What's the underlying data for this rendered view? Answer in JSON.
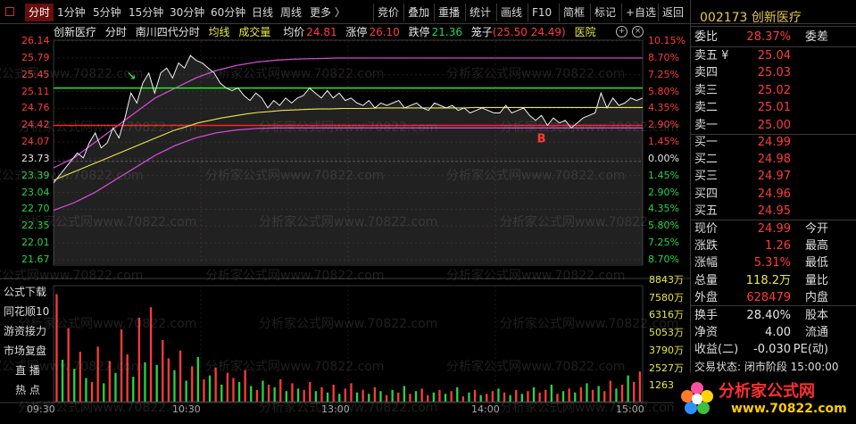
{
  "tabs": [
    "分时",
    "1分钟",
    "5分钟",
    "15分钟",
    "30分钟",
    "60分钟",
    "日线",
    "周线",
    "更多 〉"
  ],
  "tools": [
    "竞价",
    "叠加",
    "重播",
    "统计",
    "画线",
    "F10",
    "简框",
    "标记",
    "+自选",
    "返回"
  ],
  "chart_head": {
    "stock": "创新医疗",
    "mode": "分时",
    "indicator": "南川四代分时",
    "avg_line": "均线",
    "volume": "成交量",
    "avg_label": "均价",
    "avg_value": "24.81",
    "up_label": "涨停",
    "up_value": "26.10",
    "down_label": "跌停",
    "down_value": "21.36",
    "cage_label": "笼子",
    "cage_value": "(25.50 24.49)",
    "sector": "医院"
  },
  "side_buttons": [
    "公式下载",
    "同花顺10",
    "游资接力",
    "市场复盘",
    "直  播",
    "热  点"
  ],
  "volume_ticks": [
    "8843万",
    "7580万",
    "6316万",
    "5053万",
    "3790万",
    "2527万",
    "1263万"
  ],
  "time_ticks": [
    "09:30",
    "10:30",
    "13:00",
    "14:00",
    "15:00"
  ],
  "watermark": "分析家公式网www.70822.com",
  "colors": {
    "up": "#ff3b3b",
    "down": "#27d44a",
    "avg": "#e8e84a",
    "band": "#d04ad0"
  },
  "chart_data": {
    "type": "line",
    "price_ticks": [
      "26.14",
      "25.79",
      "25.45",
      "25.11",
      "24.76",
      "24.42",
      "24.07",
      "23.73",
      "23.39",
      "23.04",
      "22.70",
      "22.35",
      "22.01",
      "21.67"
    ],
    "pct_ticks": [
      "10.15%",
      "8.70%",
      "7.25%",
      "5.80%",
      "4.35%",
      "2.90%",
      "1.45%",
      "0.00%",
      "1.45%",
      "2.90%",
      "4.35%",
      "5.80%",
      "7.25%",
      "8.70%"
    ],
    "ylim": [
      21.67,
      26.14
    ],
    "prev_close": 23.73,
    "price_series": [
      23.3,
      23.45,
      23.6,
      23.75,
      23.9,
      23.8,
      24.1,
      24.3,
      24.0,
      24.1,
      24.4,
      24.2,
      24.6,
      25.1,
      24.9,
      25.3,
      25.5,
      25.1,
      25.5,
      25.6,
      25.4,
      25.7,
      25.6,
      25.85,
      25.75,
      25.7,
      25.6,
      25.5,
      25.3,
      25.2,
      25.15,
      25.2,
      25.05,
      24.95,
      25.1,
      25.0,
      24.8,
      24.95,
      24.85,
      25.0,
      24.9,
      25.0,
      25.05,
      25.2,
      25.1,
      25.0,
      25.15,
      25.0,
      25.1,
      24.95,
      25.0,
      24.9,
      24.85,
      24.95,
      24.8,
      24.9,
      24.85,
      24.9,
      24.95,
      24.8,
      24.85,
      24.9,
      24.8,
      24.75,
      24.9,
      24.85,
      24.8,
      24.85,
      24.75,
      24.8,
      24.7,
      24.75,
      24.8,
      24.75,
      24.7,
      24.7,
      24.85,
      24.7,
      24.75,
      24.8,
      24.65,
      24.55,
      24.65,
      24.45,
      24.6,
      24.5,
      24.55,
      24.4,
      24.5,
      24.6,
      24.65,
      24.7,
      25.1,
      24.8,
      25.0,
      24.85,
      24.9,
      25.0,
      24.95,
      25.0
    ],
    "avg_series": [
      23.35,
      23.45,
      23.55,
      23.65,
      23.75,
      23.85,
      23.95,
      24.05,
      24.15,
      24.25,
      24.35,
      24.42,
      24.5,
      24.55,
      24.6,
      24.64,
      24.68,
      24.71,
      24.73,
      24.75,
      24.76,
      24.77,
      24.78,
      24.78,
      24.79,
      24.79,
      24.79,
      24.8,
      24.8,
      24.8,
      24.8,
      24.8,
      24.8,
      24.8,
      24.8,
      24.81,
      24.81,
      24.81,
      24.81,
      24.81,
      24.81,
      24.81,
      24.81,
      24.81,
      24.81,
      24.81,
      24.81,
      24.81,
      24.81,
      24.81
    ],
    "upper_band": [
      23.6,
      23.8,
      24.1,
      24.4,
      24.7,
      25.0,
      25.2,
      25.4,
      25.55,
      25.65,
      25.72,
      25.76,
      25.78,
      25.79,
      25.8,
      25.8,
      25.8,
      25.8,
      25.8,
      25.8,
      25.8,
      25.8,
      25.8,
      25.8,
      25.8,
      25.8,
      25.8,
      25.8,
      25.8,
      25.8
    ],
    "lower_band": [
      22.75,
      22.9,
      23.1,
      23.35,
      23.6,
      23.85,
      24.05,
      24.2,
      24.3,
      24.36,
      24.39,
      24.4,
      24.4,
      24.4,
      24.4,
      24.4,
      24.4,
      24.4,
      24.4,
      24.4,
      24.4,
      24.4,
      24.4,
      24.4,
      24.4,
      24.4,
      24.4,
      24.4,
      24.4,
      24.4
    ],
    "green_level": 25.2,
    "red_level": 24.45,
    "markers": [
      {
        "symbol": "↘",
        "x_index": 13,
        "price": 25.45,
        "color": "#27d44a"
      },
      {
        "symbol": "B",
        "x_index": 82,
        "price": 24.2,
        "color": "#ff3b3b"
      }
    ],
    "volume_max": 8843,
    "volumes": [
      8200,
      3200,
      5600,
      2500,
      3800,
      1800,
      1500,
      4200,
      1400,
      3100,
      2200,
      5500,
      3600,
      1900,
      6400,
      3000,
      7200,
      2800,
      4700,
      3300,
      2400,
      3900,
      1600,
      2700,
      3400,
      1700,
      2000,
      2600,
      1300,
      2200,
      1800,
      1500,
      2400,
      1200,
      900,
      1600,
      1300,
      1100,
      1700,
      800,
      1400,
      1000,
      900,
      1500,
      800,
      1100,
      700,
      1300,
      600,
      1000,
      1400,
      700,
      900,
      600,
      1100,
      800,
      500,
      900,
      700,
      1200,
      600,
      800,
      1000,
      500,
      700,
      900,
      600,
      800,
      1100,
      400,
      700,
      900,
      500,
      600,
      800,
      1000,
      700,
      500,
      900,
      600,
      800,
      1100,
      700,
      900,
      1300,
      600,
      800,
      1000,
      700,
      1100,
      1400,
      900,
      1200,
      800,
      1600,
      1000,
      1300,
      2000,
      1500,
      2300
    ],
    "volume_colors": [
      "r",
      "g",
      "r",
      "g",
      "r",
      "g",
      "r",
      "r",
      "g",
      "r",
      "g",
      "r",
      "r",
      "g",
      "r",
      "g",
      "r",
      "g",
      "r",
      "r",
      "g",
      "r",
      "g",
      "r",
      "g",
      "r",
      "g",
      "r",
      "g",
      "r",
      "r",
      "g",
      "r",
      "g",
      "r",
      "g",
      "r",
      "g",
      "r",
      "g",
      "r",
      "g",
      "r",
      "r",
      "g",
      "r",
      "g",
      "r",
      "g",
      "r",
      "r",
      "g",
      "r",
      "g",
      "r",
      "g",
      "r",
      "g",
      "r",
      "g",
      "r",
      "g",
      "r",
      "r",
      "g",
      "r",
      "g",
      "r",
      "g",
      "r",
      "g",
      "r",
      "g",
      "r",
      "r",
      "g",
      "r",
      "g",
      "r",
      "g",
      "r",
      "g",
      "r",
      "r",
      "g",
      "r",
      "g",
      "r",
      "g",
      "r",
      "g",
      "r",
      "g",
      "r",
      "r",
      "g",
      "r",
      "g",
      "r",
      "r"
    ]
  },
  "quote": {
    "code_name": "002173 创新医疗",
    "webi_label": "委比",
    "webi_value": "28.37%",
    "weicha_label": "委差",
    "sells": [
      {
        "label": "卖五 ¥",
        "price": "25.04"
      },
      {
        "label": "卖四",
        "price": "25.03"
      },
      {
        "label": "卖三",
        "price": "25.02"
      },
      {
        "label": "卖二",
        "price": "25.01"
      },
      {
        "label": "卖一",
        "price": "25.00"
      }
    ],
    "buys": [
      {
        "label": "买一",
        "price": "24.99"
      },
      {
        "label": "买二",
        "price": "24.98"
      },
      {
        "label": "买三",
        "price": "24.97"
      },
      {
        "label": "买四",
        "price": "24.96"
      },
      {
        "label": "买五",
        "price": "24.95"
      }
    ],
    "stats1": [
      {
        "label": "现价",
        "value": "24.99",
        "cls": "red",
        "label2": "今开"
      },
      {
        "label": "涨跌",
        "value": "1.26",
        "cls": "red",
        "label2": "最高"
      },
      {
        "label": "涨幅",
        "value": "5.31%",
        "cls": "red",
        "label2": "最低"
      },
      {
        "label": "总量",
        "value": "118.2万",
        "cls": "yellow",
        "label2": "量比"
      },
      {
        "label": "外盘",
        "value": "628479",
        "cls": "red",
        "label2": "内盘"
      }
    ],
    "stats2": [
      {
        "label": "换手",
        "value": "28.40%",
        "cls": "white",
        "label2": "股本"
      },
      {
        "label": "净资",
        "value": "4.00",
        "cls": "white",
        "label2": "流通"
      },
      {
        "label": "收益(二)",
        "value": "-0.030",
        "cls": "white",
        "label2": "PE(动)"
      }
    ],
    "status": "交易状态: 闭市阶段 15:00:00"
  },
  "logo": {
    "text": "分析家公式网",
    "url": "www.70822.com"
  }
}
